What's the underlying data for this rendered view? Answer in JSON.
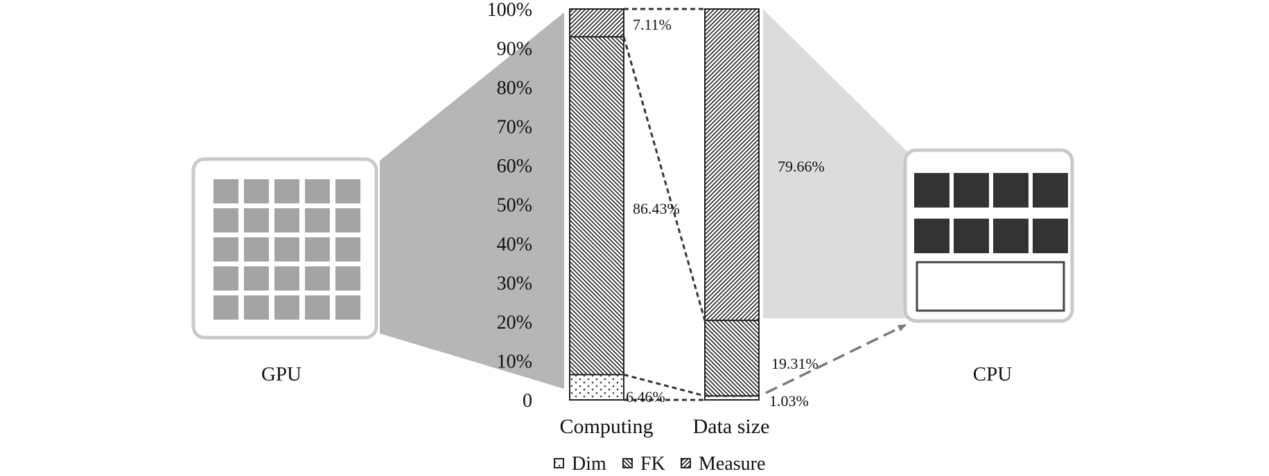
{
  "chart_data": {
    "type": "bar",
    "stacked": true,
    "categories": [
      "Computing",
      "Data size"
    ],
    "series": [
      {
        "name": "Dim",
        "values": [
          6.46,
          1.03
        ],
        "pattern": "dots"
      },
      {
        "name": "FK",
        "values": [
          86.43,
          19.31
        ],
        "pattern": "backslash-hatch"
      },
      {
        "name": "Measure",
        "values": [
          7.11,
          79.66
        ],
        "pattern": "slash-hatch"
      }
    ],
    "data_labels": [
      [
        "6.46%",
        "86.43%",
        "7.11%"
      ],
      [
        "1.03%",
        "19.31%",
        "79.66%"
      ]
    ],
    "yticks": [
      "0",
      "10%",
      "20%",
      "30%",
      "40%",
      "50%",
      "60%",
      "70%",
      "80%",
      "90%",
      "100%"
    ],
    "ylim": [
      0,
      100
    ],
    "legend": {
      "position": "bottom",
      "items": [
        "Dim",
        "FK",
        "Measure"
      ]
    },
    "devices": {
      "left": "GPU",
      "right": "CPU"
    },
    "colors": {
      "gpu_core": "#a4a4a4",
      "cpu_core": "#333333",
      "device_frame": "#c9c9c9",
      "gpu_fan": "#b6b6b6",
      "cpu_fan": "#dcdcdc",
      "connector": "#333333",
      "arrow": "#7a7a7a"
    }
  }
}
